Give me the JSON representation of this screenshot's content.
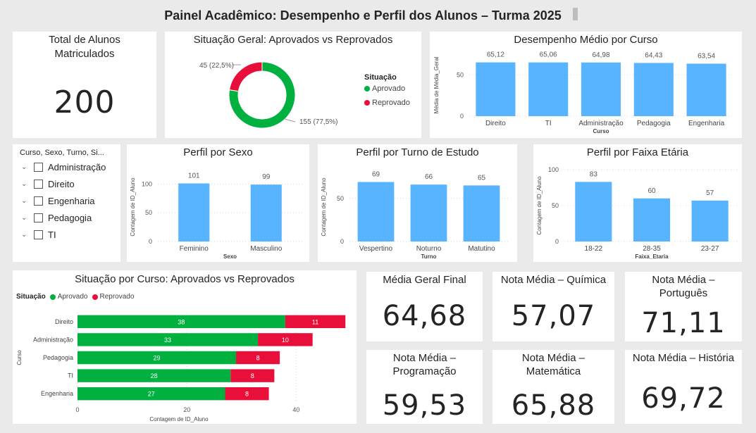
{
  "page": {
    "title": "Painel Acadêmico: Desempenho e Perfil dos Alunos – Turma 2025"
  },
  "colors": {
    "aprovado": "#00b140",
    "reprovado": "#e8103a",
    "bar": "#58b4ff",
    "grid": "#d9d9d9"
  },
  "kpi_total": {
    "title_line1": "Total de Alunos",
    "title_line2": "Matriculados",
    "value": "200"
  },
  "kpis": [
    {
      "id": "media-geral",
      "line1": "Média Geral Final",
      "line2": "",
      "value": "64,68"
    },
    {
      "id": "quimica",
      "line1": "Nota Média – Química",
      "line2": "",
      "value": "57,07"
    },
    {
      "id": "portugues",
      "line1": "Nota Média –",
      "line2": "Português",
      "value": "71,11"
    },
    {
      "id": "programacao",
      "line1": "Nota Média –",
      "line2": "Programação",
      "value": "59,53"
    },
    {
      "id": "matematica",
      "line1": "Nota Média –",
      "line2": "Matemática",
      "value": "65,88"
    },
    {
      "id": "historia",
      "line1": "Nota Média – História",
      "line2": "",
      "value": "69,72"
    }
  ],
  "slicer": {
    "title": "Curso, Sexo, Turno, Si...",
    "items": [
      {
        "label": "Administração"
      },
      {
        "label": "Direito"
      },
      {
        "label": "Engenharia"
      },
      {
        "label": "Pedagogia"
      },
      {
        "label": "TI"
      }
    ]
  },
  "chart_data": [
    {
      "id": "situacao-geral",
      "type": "pie",
      "title": "Situação Geral: Aprovados vs Reprovados",
      "legend_title": "Situação",
      "legend_position": "right",
      "slices": [
        {
          "name": "Aprovado",
          "value": 155,
          "label": "155 (77,5%)"
        },
        {
          "name": "Reprovado",
          "value": 45,
          "label": "45 (22,5%)"
        }
      ]
    },
    {
      "id": "desempenho-curso",
      "type": "bar",
      "title": "Desempenho Médio por Curso",
      "xlabel": "Curso",
      "ylabel": "Média de Média_Geral",
      "categories": [
        "Direito",
        "TI",
        "Administração",
        "Pedagogia",
        "Engenharia"
      ],
      "values": [
        65.12,
        65.06,
        64.98,
        64.43,
        63.54
      ],
      "labels": [
        "65,12",
        "65,06",
        "64,98",
        "64,43",
        "63,54"
      ],
      "yticks": [
        0,
        50
      ],
      "ylim": [
        0,
        75
      ]
    },
    {
      "id": "perfil-sexo",
      "type": "bar",
      "title": "Perfil por Sexo",
      "xlabel": "Sexo",
      "ylabel": "Contagem de ID_Aluno",
      "categories": [
        "Feminino",
        "Masculino"
      ],
      "values": [
        101,
        99
      ],
      "labels": [
        "101",
        "99"
      ],
      "yticks": [
        0,
        50,
        100
      ],
      "ylim": [
        0,
        120
      ]
    },
    {
      "id": "perfil-turno",
      "type": "bar",
      "title": "Perfil por Turno de Estudo",
      "xlabel": "Turno",
      "ylabel": "Contagem de ID_Aluno",
      "categories": [
        "Vespertino",
        "Noturno",
        "Matutino"
      ],
      "values": [
        69,
        66,
        65
      ],
      "labels": [
        "69",
        "66",
        "65"
      ],
      "yticks": [
        0,
        50
      ],
      "ylim": [
        0,
        80
      ]
    },
    {
      "id": "perfil-faixa",
      "type": "bar",
      "title": "Perfil por Faixa Etária",
      "xlabel": "Faixa_Etaria",
      "ylabel": "Contagem de ID_Aluno",
      "categories": [
        "18-22",
        "28-35",
        "23-27"
      ],
      "values": [
        83,
        60,
        57
      ],
      "labels": [
        "83",
        "60",
        "57"
      ],
      "yticks": [
        0,
        50,
        100
      ],
      "ylim": [
        0,
        100
      ]
    },
    {
      "id": "situacao-curso",
      "type": "bar",
      "orientation": "horizontal-stacked",
      "title": "Situação por Curso: Aprovados vs Reprovados",
      "legend_title": "Situação",
      "legend_position": "top-left",
      "xlabel": "Contagem de ID_Aluno",
      "ylabel": "Curso",
      "categories": [
        "Direito",
        "Administração",
        "Pedagogia",
        "TI",
        "Engenharia"
      ],
      "series": [
        {
          "name": "Aprovado",
          "values": [
            38,
            33,
            29,
            28,
            27
          ]
        },
        {
          "name": "Reprovado",
          "values": [
            11,
            10,
            8,
            8,
            8
          ]
        }
      ],
      "xticks": [
        0,
        20,
        40
      ],
      "xlim": [
        0,
        50
      ]
    }
  ]
}
